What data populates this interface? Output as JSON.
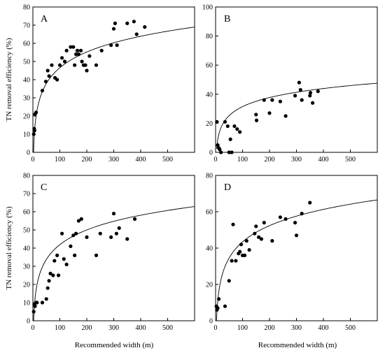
{
  "chart_data": [
    {
      "type": "scatter",
      "panel": "A",
      "xlabel": "",
      "ylabel": "TN removal efficiency (%)",
      "xlim": [
        0,
        600
      ],
      "ylim": [
        0,
        80
      ],
      "xticks": [
        0,
        100,
        200,
        300,
        400,
        500
      ],
      "yticks": [
        0,
        10,
        20,
        30,
        40,
        50,
        60,
        70,
        80
      ],
      "points": [
        [
          3,
          10
        ],
        [
          5,
          13
        ],
        [
          6,
          12
        ],
        [
          8,
          21
        ],
        [
          12,
          22
        ],
        [
          35,
          34
        ],
        [
          48,
          39
        ],
        [
          55,
          45
        ],
        [
          60,
          42
        ],
        [
          70,
          48
        ],
        [
          82,
          41
        ],
        [
          90,
          40
        ],
        [
          100,
          48
        ],
        [
          108,
          52
        ],
        [
          118,
          50
        ],
        [
          125,
          56
        ],
        [
          140,
          58
        ],
        [
          150,
          58
        ],
        [
          155,
          48
        ],
        [
          160,
          54
        ],
        [
          165,
          56
        ],
        [
          170,
          54
        ],
        [
          178,
          56
        ],
        [
          182,
          50
        ],
        [
          188,
          48
        ],
        [
          195,
          48
        ],
        [
          200,
          45
        ],
        [
          210,
          53
        ],
        [
          235,
          48
        ],
        [
          255,
          56
        ],
        [
          290,
          59
        ],
        [
          300,
          68
        ],
        [
          305,
          71
        ],
        [
          312,
          59
        ],
        [
          350,
          71
        ],
        [
          375,
          72
        ],
        [
          385,
          65
        ],
        [
          415,
          69
        ]
      ],
      "fit": {
        "a": -11.0,
        "b": 12.5,
        "xmin": 2,
        "xmax": 600
      },
      "grid": false
    },
    {
      "type": "scatter",
      "panel": "B",
      "xlabel": "",
      "ylabel": "",
      "xlim": [
        0,
        600
      ],
      "ylim": [
        0,
        100
      ],
      "xticks": [
        0,
        100,
        200,
        300,
        400,
        500
      ],
      "yticks": [
        0,
        20,
        40,
        60,
        80,
        100
      ],
      "points": [
        [
          5,
          21
        ],
        [
          8,
          5
        ],
        [
          12,
          3
        ],
        [
          15,
          2
        ],
        [
          20,
          0
        ],
        [
          35,
          21
        ],
        [
          45,
          18
        ],
        [
          50,
          0
        ],
        [
          55,
          9
        ],
        [
          60,
          0
        ],
        [
          70,
          18
        ],
        [
          80,
          16
        ],
        [
          90,
          14
        ],
        [
          150,
          26
        ],
        [
          152,
          22
        ],
        [
          180,
          36
        ],
        [
          200,
          27
        ],
        [
          210,
          36
        ],
        [
          240,
          35
        ],
        [
          260,
          25
        ],
        [
          295,
          39
        ],
        [
          310,
          48
        ],
        [
          315,
          43
        ],
        [
          320,
          36
        ],
        [
          350,
          39
        ],
        [
          352,
          41
        ],
        [
          360,
          34
        ],
        [
          380,
          42
        ]
      ],
      "fit": {
        "a": -10.0,
        "b": 9.0,
        "xmin": 4,
        "xmax": 600
      },
      "grid": false
    },
    {
      "type": "scatter",
      "panel": "C",
      "xlabel": "Recommended width (m)",
      "ylabel": "TN removal efficiency (%)",
      "xlim": [
        0,
        600
      ],
      "ylim": [
        0,
        80
      ],
      "xticks": [
        0,
        100,
        200,
        300,
        400,
        500
      ],
      "yticks": [
        0,
        10,
        20,
        30,
        40,
        50,
        60,
        70,
        80
      ],
      "points": [
        [
          3,
          5
        ],
        [
          5,
          9
        ],
        [
          8,
          8
        ],
        [
          12,
          10
        ],
        [
          15,
          10
        ],
        [
          35,
          10
        ],
        [
          50,
          12
        ],
        [
          55,
          18
        ],
        [
          60,
          22
        ],
        [
          65,
          26
        ],
        [
          75,
          25
        ],
        [
          80,
          33
        ],
        [
          90,
          36
        ],
        [
          95,
          25
        ],
        [
          108,
          48
        ],
        [
          115,
          34
        ],
        [
          125,
          31
        ],
        [
          140,
          41
        ],
        [
          150,
          47
        ],
        [
          155,
          36
        ],
        [
          160,
          48
        ],
        [
          170,
          55
        ],
        [
          180,
          56
        ],
        [
          200,
          46
        ],
        [
          235,
          36
        ],
        [
          250,
          48
        ],
        [
          290,
          46
        ],
        [
          300,
          59
        ],
        [
          310,
          48
        ],
        [
          320,
          51
        ],
        [
          350,
          45
        ],
        [
          378,
          56
        ]
      ],
      "fit": {
        "a": -12.0,
        "b": 11.7,
        "xmin": 2.8,
        "xmax": 600
      },
      "grid": false
    },
    {
      "type": "scatter",
      "panel": "D",
      "xlabel": "Recommended width (m)",
      "ylabel": "",
      "xlim": [
        0,
        600
      ],
      "ylim": [
        0,
        80
      ],
      "xticks": [
        0,
        100,
        200,
        300,
        400,
        500
      ],
      "yticks": [
        0,
        20,
        40,
        60,
        80
      ],
      "points": [
        [
          3,
          8
        ],
        [
          5,
          6
        ],
        [
          8,
          7
        ],
        [
          12,
          12
        ],
        [
          35,
          8
        ],
        [
          50,
          22
        ],
        [
          60,
          33
        ],
        [
          65,
          53
        ],
        [
          75,
          33
        ],
        [
          85,
          37
        ],
        [
          90,
          38
        ],
        [
          95,
          42
        ],
        [
          100,
          36
        ],
        [
          108,
          36
        ],
        [
          115,
          44
        ],
        [
          125,
          39
        ],
        [
          145,
          48
        ],
        [
          150,
          52
        ],
        [
          160,
          46
        ],
        [
          170,
          45
        ],
        [
          180,
          54
        ],
        [
          210,
          44
        ],
        [
          240,
          57
        ],
        [
          260,
          56
        ],
        [
          295,
          54
        ],
        [
          300,
          47
        ],
        [
          320,
          59
        ],
        [
          350,
          65
        ]
      ],
      "fit": {
        "a": -16.0,
        "b": 12.9,
        "xmin": 3.5,
        "xmax": 600
      },
      "grid": false
    }
  ]
}
